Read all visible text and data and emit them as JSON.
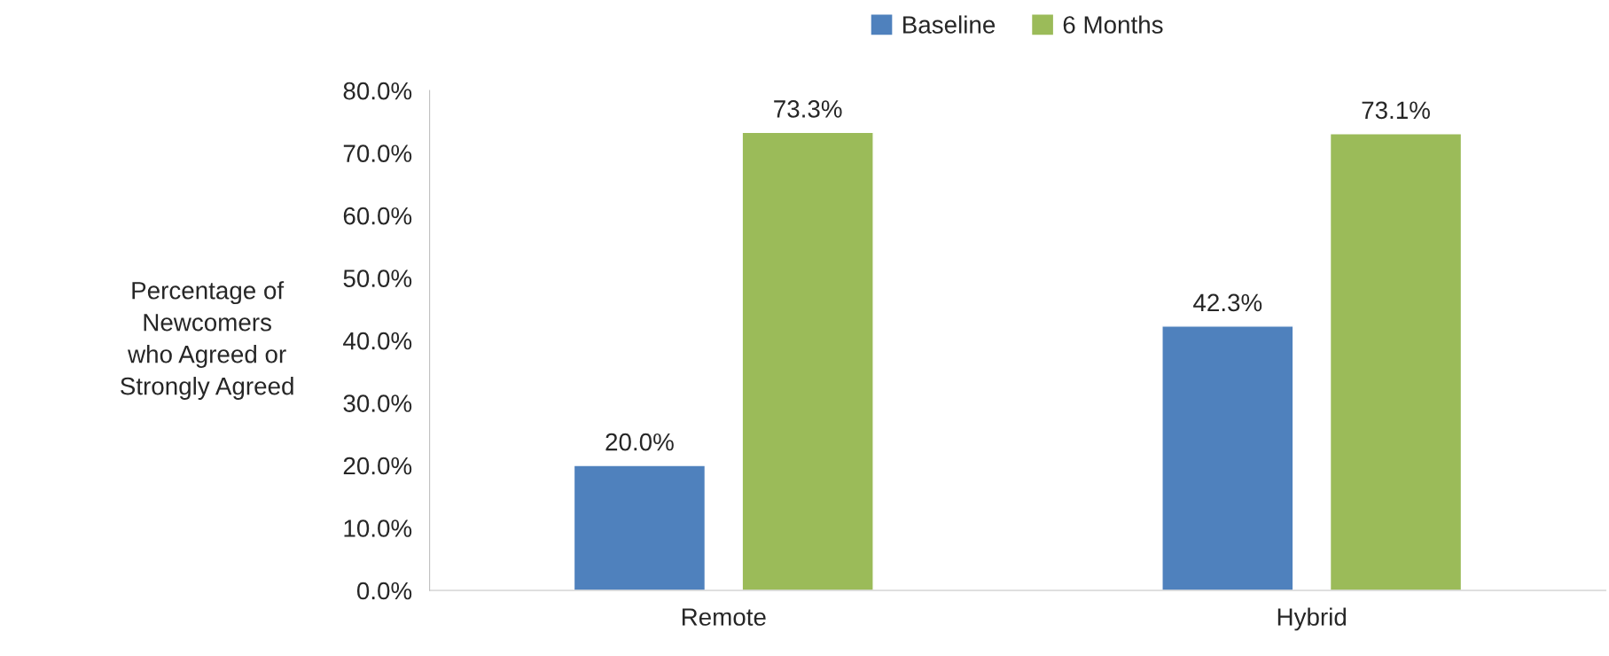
{
  "chart_data": {
    "type": "bar",
    "categories": [
      "Remote",
      "Hybrid"
    ],
    "series": [
      {
        "name": "Baseline",
        "color": "#4f81bd",
        "values": [
          20.0,
          42.3
        ],
        "value_labels": [
          "20.0%",
          "42.3%"
        ]
      },
      {
        "name": "6 Months",
        "color": "#9bbb59",
        "values": [
          73.3,
          73.1
        ],
        "value_labels": [
          "73.3%",
          "73.1%"
        ]
      }
    ],
    "ylabel": "Percentage of\nNewcomers\nwho Agreed or\nStrongly Agreed",
    "ylim": [
      0,
      80
    ],
    "yticks": [
      {
        "value": 0,
        "label": "0.0%"
      },
      {
        "value": 10,
        "label": "10.0%"
      },
      {
        "value": 20,
        "label": "20.0%"
      },
      {
        "value": 30,
        "label": "30.0%"
      },
      {
        "value": 40,
        "label": "40.0%"
      },
      {
        "value": 50,
        "label": "50.0%"
      },
      {
        "value": 60,
        "label": "60.0%"
      },
      {
        "value": 70,
        "label": "70.0%"
      },
      {
        "value": 80,
        "label": "80.0%"
      }
    ],
    "grid": false,
    "legend": "top"
  }
}
